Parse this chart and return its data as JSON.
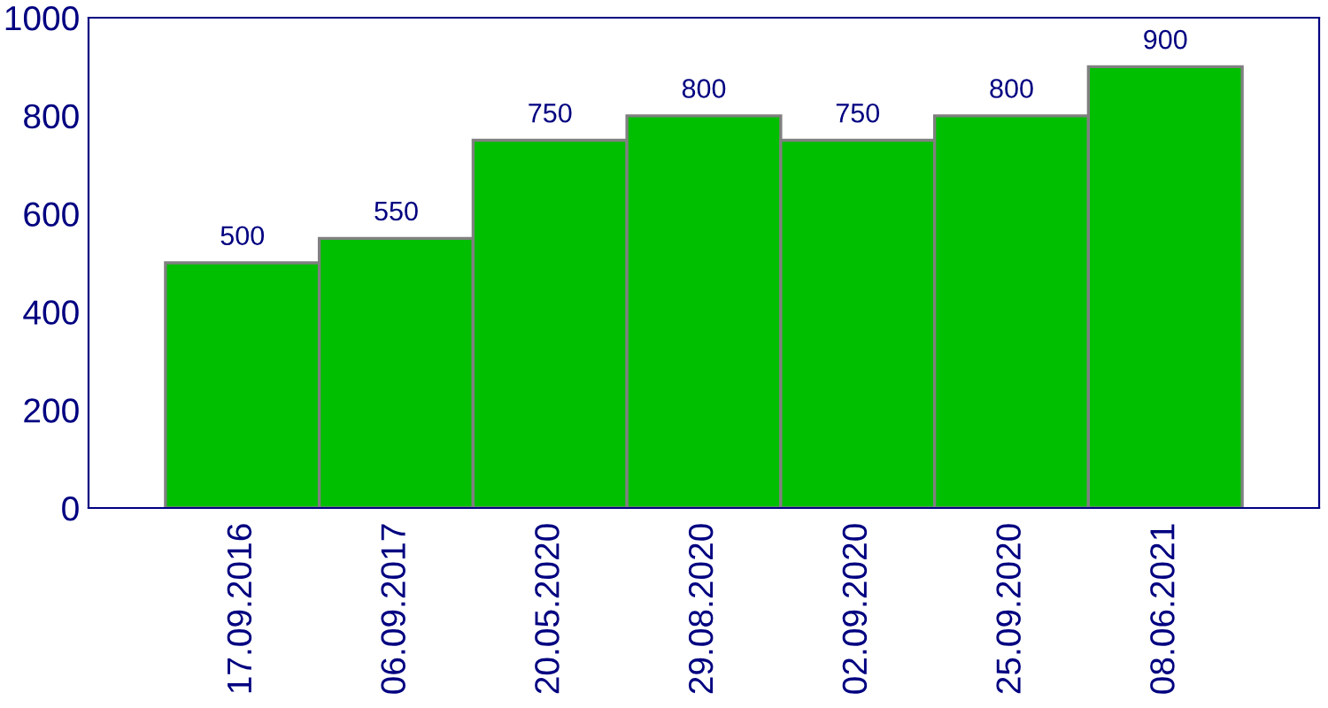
{
  "chart_data": {
    "type": "bar",
    "categories": [
      "17.09.2016",
      "06.09.2017",
      "20.05.2020",
      "29.08.2020",
      "02.09.2020",
      "25.09.2020",
      "08.06.2021"
    ],
    "values": [
      500,
      550,
      750,
      800,
      750,
      800,
      900
    ],
    "color": "#00bf00",
    "ylim": [
      0,
      1000
    ],
    "yticks": [
      0,
      200,
      400,
      600,
      800,
      1000
    ],
    "grid": false,
    "data_labels": true
  }
}
